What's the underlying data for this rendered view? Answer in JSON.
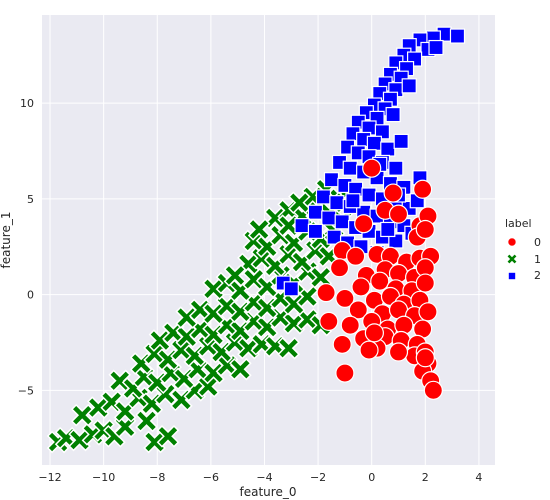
{
  "chart_data": {
    "type": "scatter",
    "title": "",
    "xlabel": "feature_0",
    "ylabel": "feature_1",
    "xlim": [
      -12.3,
      4.6
    ],
    "ylim": [
      -8.9,
      14.6
    ],
    "xticks": [
      -12,
      -10,
      -8,
      -6,
      -4,
      -2,
      0,
      2,
      4
    ],
    "yticks": [
      -5,
      0,
      5,
      10
    ],
    "grid": true,
    "background": "#eaeaf2",
    "legend": {
      "title": "label",
      "placement": "right",
      "entries": [
        "0",
        "1",
        "2"
      ]
    },
    "series": [
      {
        "name": "0",
        "marker": "circle",
        "color": "#ff0000",
        "points": [
          [
            -0.3,
            3.7
          ],
          [
            0.0,
            6.6
          ],
          [
            0.8,
            5.3
          ],
          [
            1.9,
            5.5
          ],
          [
            0.5,
            4.4
          ],
          [
            1.0,
            4.2
          ],
          [
            1.8,
            3.6
          ],
          [
            2.1,
            4.1
          ],
          [
            1.7,
            3.0
          ],
          [
            2.0,
            3.4
          ],
          [
            -1.1,
            2.3
          ],
          [
            -0.6,
            2.0
          ],
          [
            0.2,
            2.1
          ],
          [
            0.7,
            2.0
          ],
          [
            1.3,
            1.7
          ],
          [
            1.8,
            1.9
          ],
          [
            2.2,
            2.0
          ],
          [
            -1.2,
            1.4
          ],
          [
            -0.2,
            1.0
          ],
          [
            0.5,
            1.3
          ],
          [
            1.0,
            1.1
          ],
          [
            1.6,
            0.9
          ],
          [
            2.0,
            1.4
          ],
          [
            -0.4,
            0.4
          ],
          [
            0.3,
            0.7
          ],
          [
            0.9,
            0.3
          ],
          [
            1.5,
            0.2
          ],
          [
            2.0,
            0.6
          ],
          [
            -1.7,
            0.1
          ],
          [
            -1.0,
            -0.2
          ],
          [
            0.1,
            -0.3
          ],
          [
            0.7,
            -0.1
          ],
          [
            1.2,
            -0.5
          ],
          [
            1.8,
            -0.3
          ],
          [
            -0.5,
            -0.8
          ],
          [
            0.4,
            -1.0
          ],
          [
            1.0,
            -0.8
          ],
          [
            1.6,
            -1.1
          ],
          [
            2.1,
            -0.9
          ],
          [
            -1.6,
            -1.4
          ],
          [
            -0.8,
            -1.6
          ],
          [
            0.0,
            -1.4
          ],
          [
            0.6,
            -1.8
          ],
          [
            1.2,
            -1.6
          ],
          [
            1.9,
            -1.8
          ],
          [
            -0.3,
            -2.3
          ],
          [
            0.5,
            -2.2
          ],
          [
            1.1,
            -2.4
          ],
          [
            1.7,
            -2.6
          ],
          [
            -1.1,
            -2.6
          ],
          [
            0.2,
            -2.8
          ],
          [
            -0.1,
            -2.9
          ],
          [
            1.6,
            -3.2
          ],
          [
            2.0,
            -3.0
          ],
          [
            2.1,
            -3.6
          ],
          [
            1.9,
            -4.0
          ],
          [
            2.2,
            -4.5
          ],
          [
            2.3,
            -5.0
          ],
          [
            -1.0,
            -4.1
          ],
          [
            2.0,
            -3.3
          ],
          [
            1.0,
            -3.0
          ],
          [
            0.1,
            -2.0
          ]
        ]
      },
      {
        "name": "1",
        "marker": "x",
        "color": "#008000",
        "points": [
          [
            -11.7,
            -7.7
          ],
          [
            -11.4,
            -7.5
          ],
          [
            -10.9,
            -7.6
          ],
          [
            -10.4,
            -7.3
          ],
          [
            -10.0,
            -7.1
          ],
          [
            -9.6,
            -7.4
          ],
          [
            -9.2,
            -6.9
          ],
          [
            -8.4,
            -6.6
          ],
          [
            -8.1,
            -7.7
          ],
          [
            -7.6,
            -7.4
          ],
          [
            -10.8,
            -6.3
          ],
          [
            -10.2,
            -5.9
          ],
          [
            -9.7,
            -5.6
          ],
          [
            -9.2,
            -6.1
          ],
          [
            -8.7,
            -5.4
          ],
          [
            -8.2,
            -5.7
          ],
          [
            -7.7,
            -5.2
          ],
          [
            -7.1,
            -5.5
          ],
          [
            -6.6,
            -5.0
          ],
          [
            -6.1,
            -4.8
          ],
          [
            -9.4,
            -4.5
          ],
          [
            -8.9,
            -4.9
          ],
          [
            -8.5,
            -4.3
          ],
          [
            -8.0,
            -4.6
          ],
          [
            -7.5,
            -4.1
          ],
          [
            -7.0,
            -4.4
          ],
          [
            -6.5,
            -3.9
          ],
          [
            -5.9,
            -4.1
          ],
          [
            -5.4,
            -3.7
          ],
          [
            -4.9,
            -3.9
          ],
          [
            -8.6,
            -3.6
          ],
          [
            -8.1,
            -3.1
          ],
          [
            -7.6,
            -3.4
          ],
          [
            -7.1,
            -2.9
          ],
          [
            -6.6,
            -3.2
          ],
          [
            -6.1,
            -2.7
          ],
          [
            -5.6,
            -3.0
          ],
          [
            -5.1,
            -2.5
          ],
          [
            -4.6,
            -2.8
          ],
          [
            -4.1,
            -2.6
          ],
          [
            -3.6,
            -2.7
          ],
          [
            -3.1,
            -2.8
          ],
          [
            -7.9,
            -2.4
          ],
          [
            -7.4,
            -2.0
          ],
          [
            -6.9,
            -2.2
          ],
          [
            -6.4,
            -1.8
          ],
          [
            -5.9,
            -2.1
          ],
          [
            -5.4,
            -1.6
          ],
          [
            -4.9,
            -1.9
          ],
          [
            -4.4,
            -1.4
          ],
          [
            -3.9,
            -1.7
          ],
          [
            -3.4,
            -1.2
          ],
          [
            -2.9,
            -1.5
          ],
          [
            -2.4,
            -1.3
          ],
          [
            -1.9,
            -1.6
          ],
          [
            -6.9,
            -1.2
          ],
          [
            -6.4,
            -0.8
          ],
          [
            -5.9,
            -1.0
          ],
          [
            -5.4,
            -0.6
          ],
          [
            -4.9,
            -0.9
          ],
          [
            -4.4,
            -0.4
          ],
          [
            -3.9,
            -0.7
          ],
          [
            -3.4,
            -0.2
          ],
          [
            -2.9,
            -0.5
          ],
          [
            -2.4,
            -0.1
          ],
          [
            -5.9,
            0.3
          ],
          [
            -5.4,
            0.6
          ],
          [
            -4.9,
            0.2
          ],
          [
            -4.4,
            0.8
          ],
          [
            -3.9,
            0.4
          ],
          [
            -3.4,
            1.0
          ],
          [
            -2.9,
            0.6
          ],
          [
            -2.4,
            1.2
          ],
          [
            -1.9,
            0.9
          ],
          [
            -4.6,
            1.6
          ],
          [
            -4.1,
            1.9
          ],
          [
            -3.6,
            1.5
          ],
          [
            -3.1,
            2.1
          ],
          [
            -2.6,
            1.7
          ],
          [
            -2.1,
            2.3
          ],
          [
            -1.6,
            2.0
          ],
          [
            -4.4,
            2.8
          ],
          [
            -3.9,
            2.5
          ],
          [
            -3.4,
            3.1
          ],
          [
            -2.9,
            2.7
          ],
          [
            -2.4,
            3.3
          ],
          [
            -1.9,
            2.9
          ],
          [
            -1.4,
            3.5
          ],
          [
            -3.6,
            4.0
          ],
          [
            -3.1,
            4.4
          ],
          [
            -2.6,
            4.1
          ],
          [
            -2.1,
            4.6
          ],
          [
            -1.6,
            4.3
          ],
          [
            -1.1,
            3.9
          ],
          [
            -2.2,
            5.1
          ],
          [
            -1.7,
            5.5
          ],
          [
            -1.2,
            5.0
          ],
          [
            -3.1,
            3.6
          ],
          [
            -4.2,
            3.4
          ],
          [
            -5.1,
            1.0
          ],
          [
            -1.4,
            3.3
          ],
          [
            -1.0,
            4.8
          ],
          [
            -2.7,
            4.8
          ]
        ]
      },
      {
        "name": "2",
        "marker": "square",
        "color": "#0000ff",
        "points": [
          [
            2.7,
            13.6
          ],
          [
            3.2,
            13.5
          ],
          [
            2.3,
            13.4
          ],
          [
            1.8,
            13.3
          ],
          [
            1.4,
            13.0
          ],
          [
            2.1,
            12.8
          ],
          [
            1.2,
            12.5
          ],
          [
            1.6,
            12.3
          ],
          [
            0.9,
            12.1
          ],
          [
            1.3,
            11.8
          ],
          [
            0.7,
            11.5
          ],
          [
            1.1,
            11.3
          ],
          [
            0.5,
            11.0
          ],
          [
            0.9,
            10.7
          ],
          [
            0.3,
            10.5
          ],
          [
            0.7,
            10.2
          ],
          [
            0.1,
            9.9
          ],
          [
            0.5,
            9.7
          ],
          [
            -0.2,
            9.5
          ],
          [
            0.2,
            9.2
          ],
          [
            -0.5,
            9.0
          ],
          [
            -0.1,
            8.7
          ],
          [
            0.4,
            8.5
          ],
          [
            -0.7,
            8.4
          ],
          [
            -0.3,
            8.1
          ],
          [
            0.1,
            7.9
          ],
          [
            0.6,
            7.6
          ],
          [
            -0.9,
            7.7
          ],
          [
            -0.5,
            7.4
          ],
          [
            -0.1,
            7.2
          ],
          [
            0.4,
            6.9
          ],
          [
            0.9,
            6.6
          ],
          [
            -1.2,
            6.9
          ],
          [
            -0.8,
            6.6
          ],
          [
            -0.3,
            6.4
          ],
          [
            0.2,
            6.1
          ],
          [
            0.7,
            5.8
          ],
          [
            1.2,
            5.6
          ],
          [
            -1.5,
            6.0
          ],
          [
            -1.0,
            5.7
          ],
          [
            -0.6,
            5.5
          ],
          [
            -0.1,
            5.2
          ],
          [
            0.4,
            5.0
          ],
          [
            0.9,
            4.7
          ],
          [
            1.4,
            4.5
          ],
          [
            -1.8,
            5.1
          ],
          [
            -1.3,
            4.8
          ],
          [
            -0.8,
            4.6
          ],
          [
            -0.3,
            4.3
          ],
          [
            0.2,
            4.1
          ],
          [
            0.7,
            3.8
          ],
          [
            1.2,
            3.6
          ],
          [
            1.7,
            4.9
          ],
          [
            -2.1,
            4.3
          ],
          [
            -1.6,
            4.0
          ],
          [
            -1.1,
            3.8
          ],
          [
            -0.6,
            3.5
          ],
          [
            -0.1,
            3.3
          ],
          [
            0.4,
            3.0
          ],
          [
            0.9,
            2.8
          ],
          [
            -2.6,
            3.6
          ],
          [
            -2.1,
            3.3
          ],
          [
            -1.4,
            3.0
          ],
          [
            -0.9,
            2.7
          ],
          [
            -0.4,
            2.5
          ],
          [
            0.2,
            2.2
          ],
          [
            -3.3,
            0.6
          ],
          [
            -3.0,
            0.3
          ],
          [
            1.5,
            3.2
          ],
          [
            1.8,
            6.1
          ],
          [
            1.1,
            8.0
          ],
          [
            0.8,
            9.4
          ],
          [
            1.4,
            10.9
          ],
          [
            2.4,
            12.9
          ],
          [
            0.3,
            6.8
          ],
          [
            -0.7,
            4.9
          ],
          [
            1.0,
            5.2
          ],
          [
            0.6,
            3.4
          ]
        ]
      }
    ]
  }
}
